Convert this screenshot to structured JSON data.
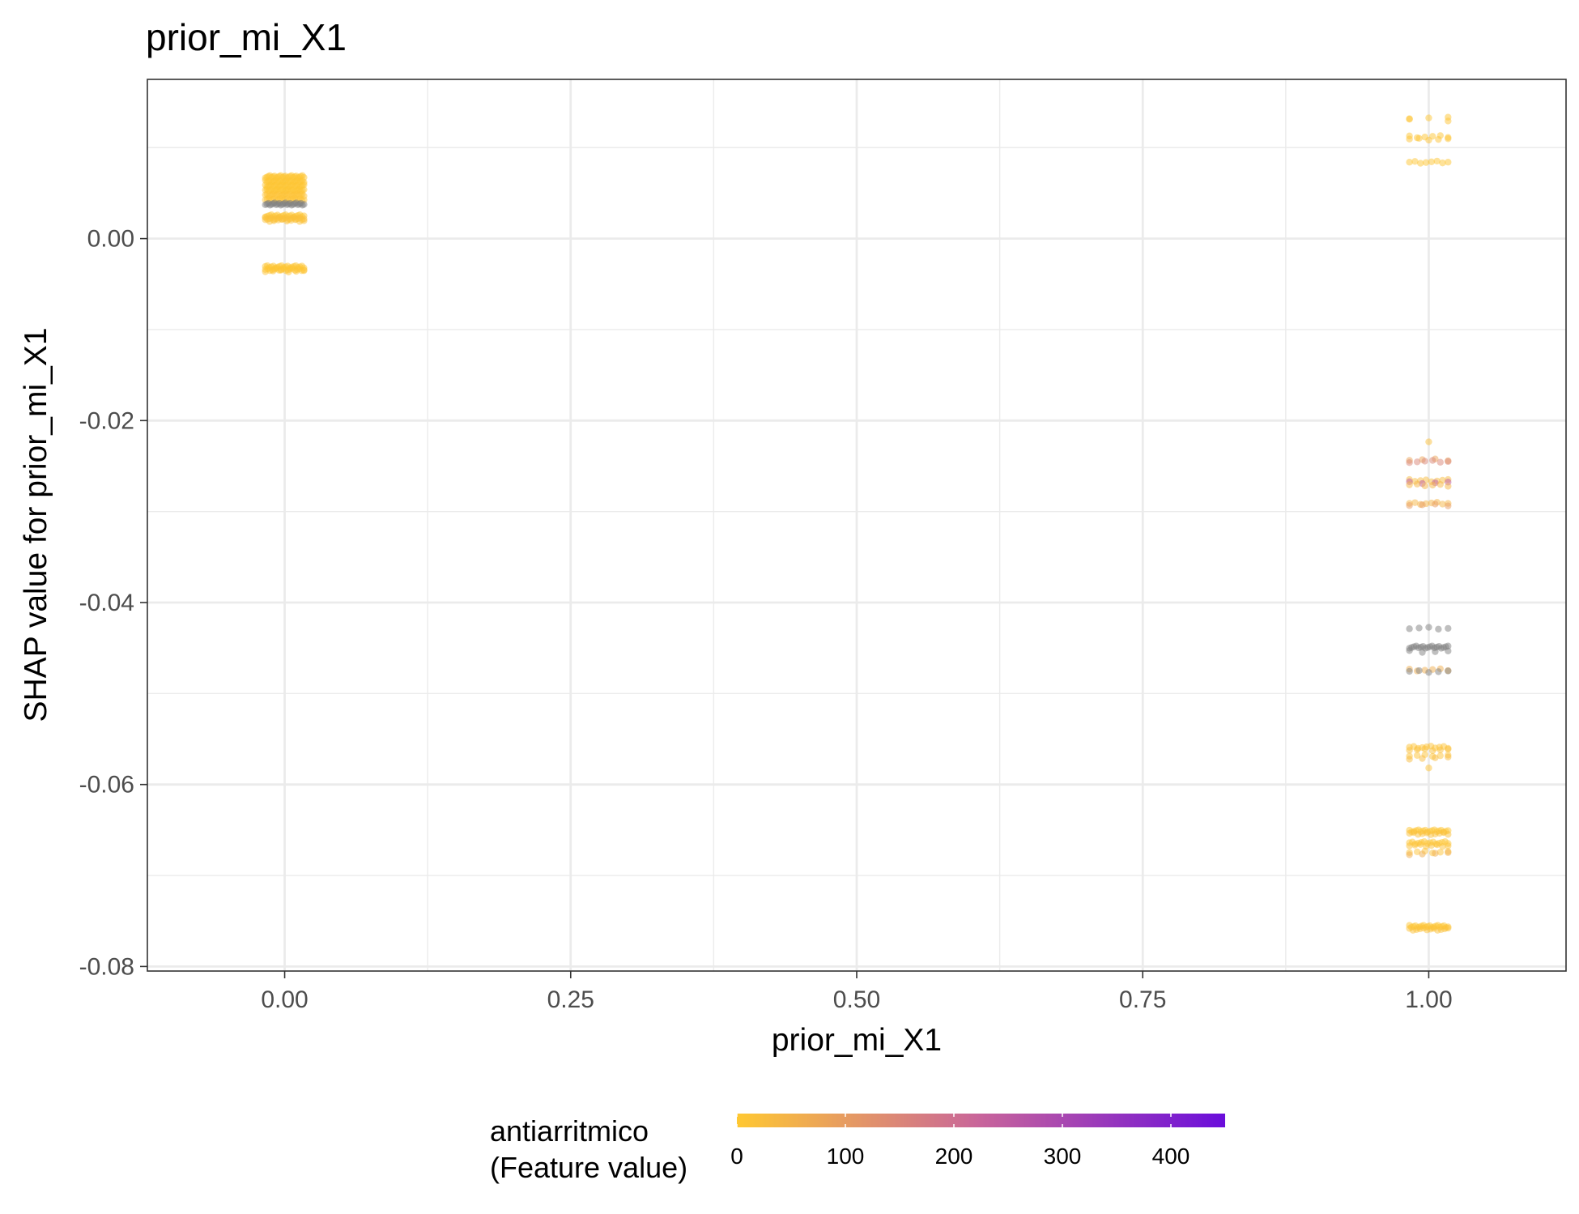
{
  "chart_data": {
    "type": "scatter",
    "title": "prior_mi_X1",
    "xlabel": "prior_mi_X1",
    "ylabel": "SHAP value for prior_mi_X1",
    "xlim": [
      -0.12,
      1.12
    ],
    "ylim": [
      -0.0805,
      0.0175
    ],
    "x_ticks": [
      0.0,
      0.25,
      0.5,
      0.75,
      1.0
    ],
    "x_tick_labels": [
      "0.00",
      "0.25",
      "0.50",
      "0.75",
      "1.00"
    ],
    "y_ticks": [
      0.0,
      -0.02,
      -0.04,
      -0.06,
      -0.08
    ],
    "y_tick_labels": [
      "0.00",
      "-0.02",
      "-0.04",
      "-0.06",
      "-0.08"
    ],
    "grid": true,
    "point_opacity": 0.5,
    "colors": {
      "low": "#FFC832",
      "mid": "#C8649B",
      "high": "#6A0DDB",
      "missing": "#7F7F7F",
      "grid": "#EBEBEB",
      "panel_border": "#333333"
    },
    "legend": {
      "title_line1": "antiarritmico",
      "title_line2": "(Feature value)",
      "placement": "bottom",
      "range": [
        0,
        450
      ],
      "ticks": [
        0,
        100,
        200,
        300,
        400
      ],
      "tick_labels": [
        "0",
        "100",
        "200",
        "300",
        "400"
      ]
    },
    "series": [
      {
        "x": 0,
        "groups": [
          {
            "y": 0.0068,
            "count": 26,
            "color_value": 5
          },
          {
            "y": 0.0063,
            "count": 26,
            "color_value": 5
          },
          {
            "y": 0.0058,
            "count": 26,
            "color_value": 5
          },
          {
            "y": 0.0053,
            "count": 26,
            "color_value": 5
          },
          {
            "y": 0.0048,
            "count": 24,
            "color_value": 10
          },
          {
            "y": 0.0043,
            "count": 22,
            "color_value": 10
          },
          {
            "y": 0.0038,
            "count": 26,
            "color_value": null
          },
          {
            "y": 0.0025,
            "count": 20,
            "color_value": 5
          },
          {
            "y": 0.0022,
            "count": 20,
            "color_value": 20
          },
          {
            "y": 0.002,
            "count": 10,
            "color_value": 15
          },
          {
            "y": -0.0031,
            "count": 20,
            "color_value": 5
          },
          {
            "y": -0.0034,
            "count": 18,
            "color_value": 5
          },
          {
            "y": -0.0036,
            "count": 6,
            "color_value": 10
          }
        ]
      },
      {
        "x": 1,
        "groups": [
          {
            "y": 0.0133,
            "count": 3,
            "color_value": 5
          },
          {
            "y": 0.013,
            "count": 2,
            "color_value": 10
          },
          {
            "y": 0.0112,
            "count": 6,
            "color_value": 5
          },
          {
            "y": 0.0109,
            "count": 5,
            "color_value": 10
          },
          {
            "y": 0.0084,
            "count": 8,
            "color_value": 5
          },
          {
            "y": -0.0223,
            "count": 1,
            "color_value": 20
          },
          {
            "y": -0.0243,
            "count": 4,
            "color_value": 80
          },
          {
            "y": -0.0245,
            "count": 6,
            "color_value": 150
          },
          {
            "y": -0.0266,
            "count": 8,
            "color_value": 30
          },
          {
            "y": -0.0268,
            "count": 4,
            "color_value": 250
          },
          {
            "y": -0.0271,
            "count": 6,
            "color_value": 40
          },
          {
            "y": -0.0291,
            "count": 8,
            "color_value": 40
          },
          {
            "y": -0.0293,
            "count": 4,
            "color_value": 100
          },
          {
            "y": -0.0428,
            "count": 5,
            "color_value": null
          },
          {
            "y": -0.0449,
            "count": 18,
            "color_value": null
          },
          {
            "y": -0.0454,
            "count": 4,
            "color_value": null
          },
          {
            "y": -0.0474,
            "count": 6,
            "color_value": 60
          },
          {
            "y": -0.0476,
            "count": 5,
            "color_value": null
          },
          {
            "y": -0.0559,
            "count": 10,
            "color_value": 10
          },
          {
            "y": -0.0562,
            "count": 6,
            "color_value": 20
          },
          {
            "y": -0.0568,
            "count": 6,
            "color_value": 10
          },
          {
            "y": -0.0571,
            "count": 4,
            "color_value": 30
          },
          {
            "y": -0.0583,
            "count": 1,
            "color_value": 10
          },
          {
            "y": -0.0651,
            "count": 18,
            "color_value": 5
          },
          {
            "y": -0.0654,
            "count": 10,
            "color_value": 20
          },
          {
            "y": -0.0664,
            "count": 14,
            "color_value": 5
          },
          {
            "y": -0.0667,
            "count": 8,
            "color_value": 15
          },
          {
            "y": -0.0674,
            "count": 6,
            "color_value": 10
          },
          {
            "y": -0.0676,
            "count": 4,
            "color_value": 60
          },
          {
            "y": -0.0756,
            "count": 20,
            "color_value": 5
          },
          {
            "y": -0.0759,
            "count": 12,
            "color_value": 15
          }
        ]
      }
    ]
  }
}
